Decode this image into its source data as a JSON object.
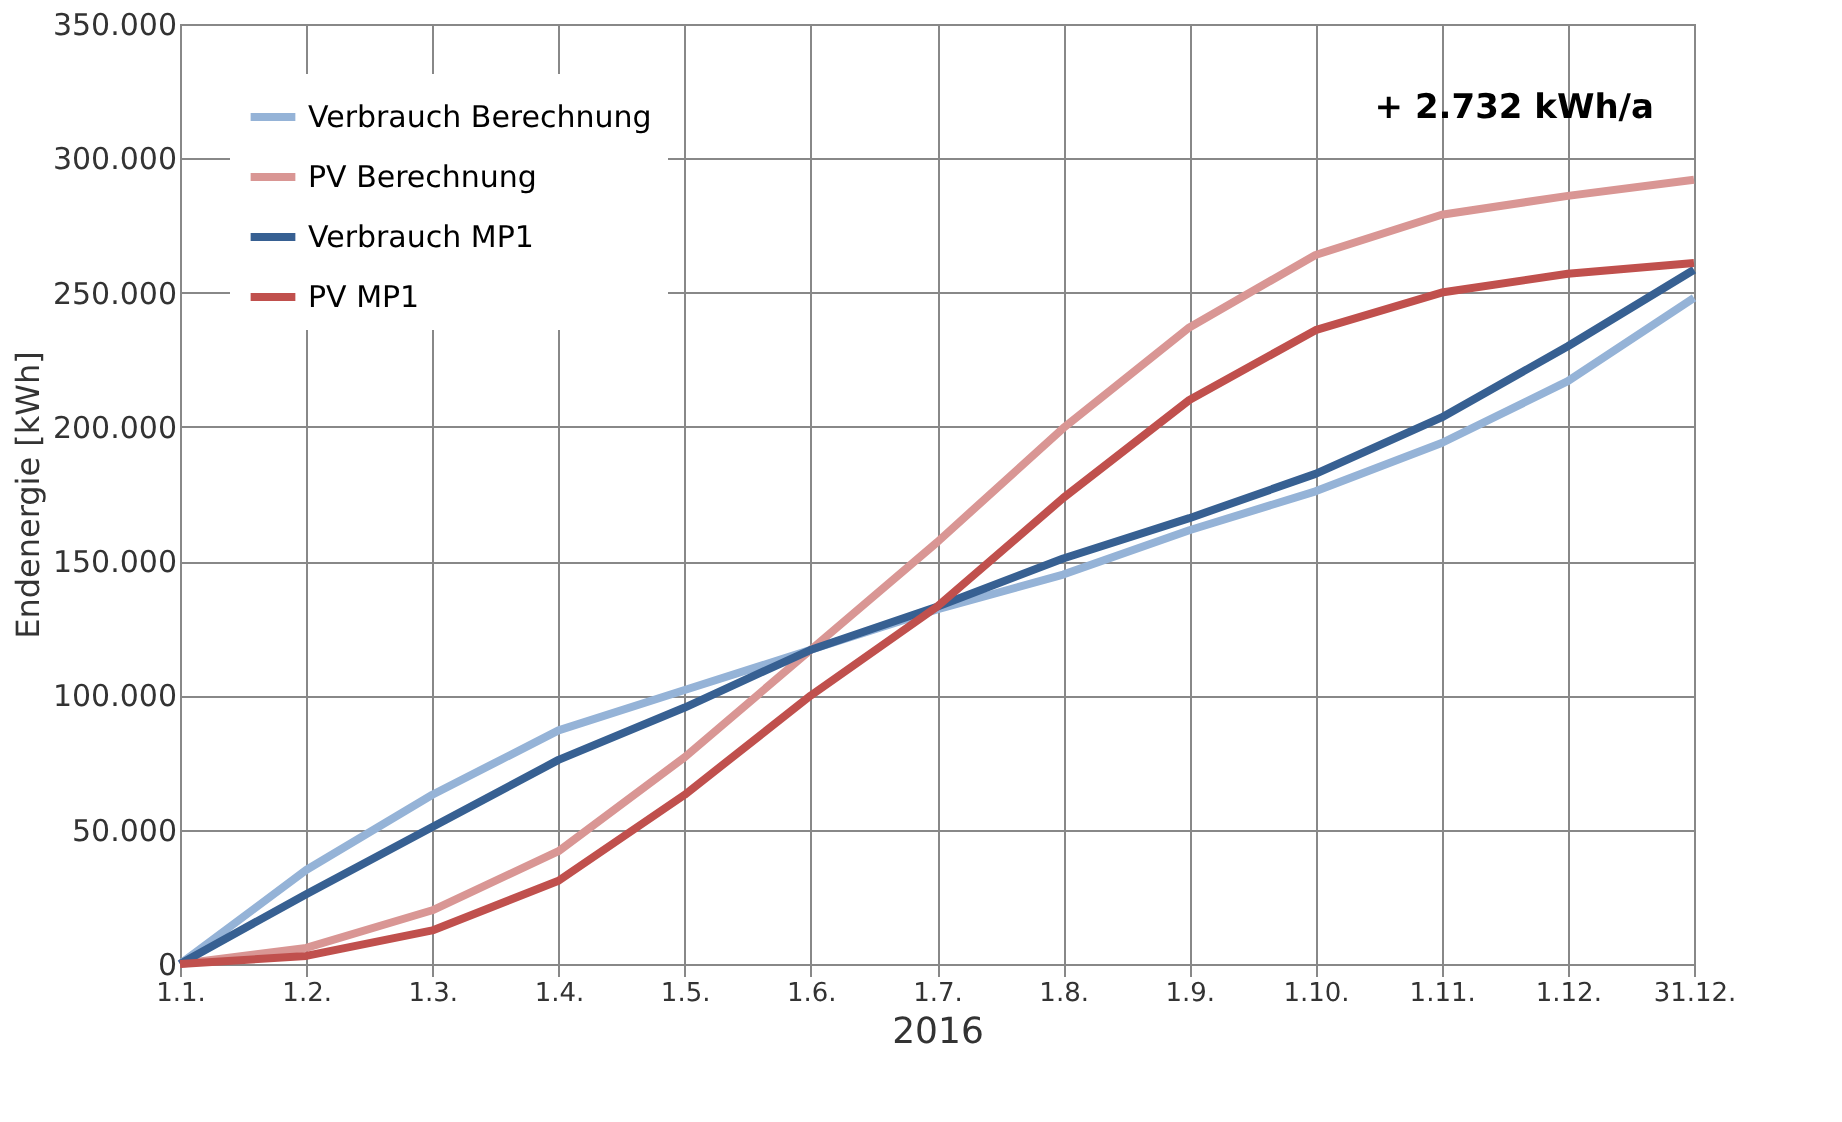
{
  "chart_data": {
    "type": "line",
    "xlabel": "2016",
    "ylabel": "Endenergie [kWh]",
    "categories": [
      "1.1.",
      "1.2.",
      "1.3.",
      "1.4.",
      "1.5.",
      "1.6.",
      "1.7.",
      "1.8.",
      "1.9.",
      "1.10.",
      "1.11.",
      "1.12.",
      "31.12."
    ],
    "series": [
      {
        "name": "Verbrauch Berechnung",
        "color": "#95b3d7",
        "values": [
          0,
          35000,
          63000,
          87000,
          102000,
          117000,
          132000,
          145000,
          161500,
          176000,
          194000,
          217000,
          248000
        ]
      },
      {
        "name": "PV Berechnung",
        "color": "#d99694",
        "values": [
          0,
          6000,
          20000,
          42000,
          77000,
          117000,
          157000,
          199500,
          237000,
          264000,
          279000,
          286000,
          292000
        ]
      },
      {
        "name": "Verbrauch MP1",
        "color": "#376092",
        "values": [
          0,
          26000,
          51000,
          76000,
          95500,
          117000,
          133000,
          151000,
          166000,
          182500,
          203500,
          230000,
          258500
        ]
      },
      {
        "name": "PV MP1",
        "color": "#c0504d",
        "values": [
          0,
          3000,
          12500,
          31000,
          63000,
          100000,
          133000,
          173500,
          210000,
          236000,
          250000,
          257000,
          261000
        ]
      }
    ],
    "ylim": [
      0,
      350000
    ],
    "yticks": [
      0,
      {
        "value": 50000,
        "label": "50.000"
      },
      {
        "value": 100000,
        "label": "100.000"
      },
      {
        "value": 150000,
        "label": "150.000"
      },
      {
        "value": 200000,
        "label": "200.000"
      },
      {
        "value": 250000,
        "label": "250.000"
      },
      {
        "value": 300000,
        "label": "300.000"
      },
      {
        "value": 350000,
        "label": "350.000"
      }
    ],
    "annotations": [
      "+ 2.732 kWh/a"
    ],
    "grid": true,
    "legend": "top left",
    "line_style": "solid",
    "marker": "none"
  }
}
